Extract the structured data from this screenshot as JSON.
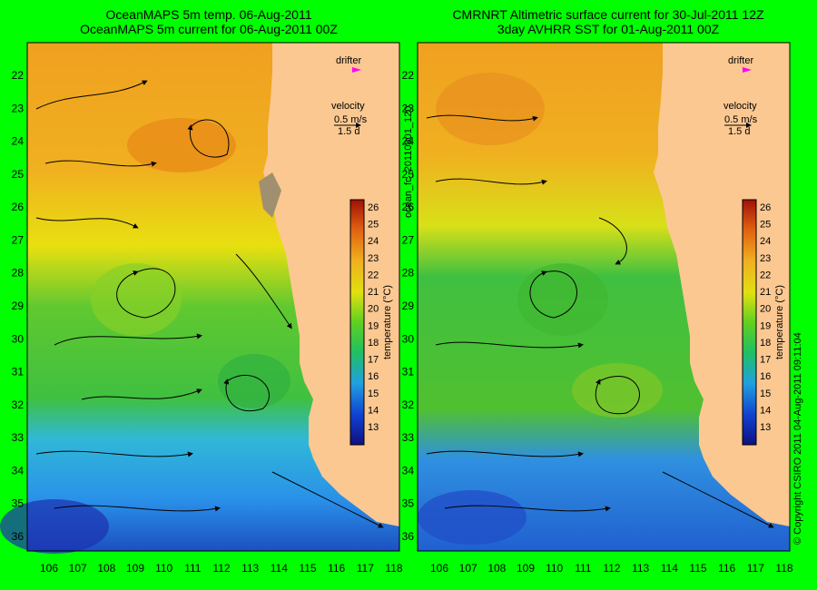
{
  "panels": [
    {
      "id": "left",
      "title_line1": "OceanMAPS 5m temp. 06-Aug-2011",
      "title_line2": "OceanMAPS 5m current for 06-Aug-2011 00Z"
    },
    {
      "id": "right",
      "title_line1": "CMRNRT Altimetric surface current for 30-Jul-2011 12Z",
      "title_line2": "3day AVHRR SST for 01-Aug-2011 00Z"
    }
  ],
  "legend": {
    "drifter_label": "drifter",
    "drifter_color": "#ff00ff",
    "velocity_label": "velocity",
    "velocity_scale": "0.5 m/s",
    "velocity_time": "1.5 d"
  },
  "colorbar": {
    "label": "temperature (°C)",
    "ticks": [
      "13",
      "14",
      "15",
      "16",
      "17",
      "18",
      "19",
      "20",
      "21",
      "22",
      "23",
      "24",
      "25",
      "26"
    ]
  },
  "axes": {
    "y_ticks": [
      "22",
      "23",
      "24",
      "25",
      "26",
      "27",
      "28",
      "29",
      "30",
      "31",
      "32",
      "33",
      "34",
      "35",
      "36"
    ],
    "x_ticks": [
      "106",
      "107",
      "108",
      "109",
      "110",
      "111",
      "112",
      "113",
      "114",
      "115",
      "116",
      "117",
      "118"
    ]
  },
  "side_label": "ocean_fc_20110801_120",
  "copyright": "© Copyright CSIRO 2011   04-Aug-2011 09:11:04",
  "colors": {
    "background": "#00ff00",
    "land": "#fbc891",
    "warm": "#f0a020",
    "mid": "#e8e010",
    "cool": "#30c030",
    "cold": "#2080e0"
  }
}
